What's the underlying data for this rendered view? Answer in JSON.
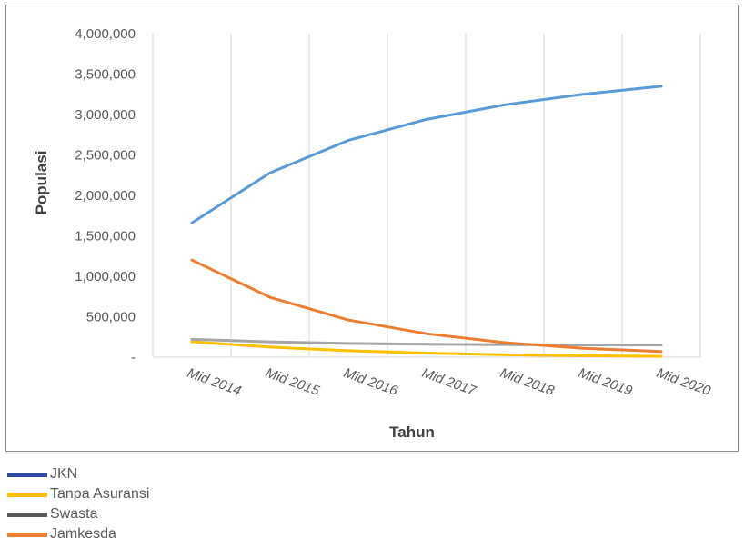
{
  "chart_data": {
    "type": "line",
    "xlabel": "Tahun",
    "ylabel": "Populasi",
    "categories": [
      "Mid 2014",
      "Mid 2015",
      "Mid 2016",
      "Mid 2017",
      "Mid 2018",
      "Mid 2019",
      "Mid 2020"
    ],
    "ylim": [
      0,
      4000000
    ],
    "y_ticks": [
      0,
      500000,
      1000000,
      1500000,
      2000000,
      2500000,
      3000000,
      3500000,
      4000000
    ],
    "y_tick_labels": [
      "-",
      "500,000",
      "1,000,000",
      "1,500,000",
      "2,000,000",
      "2,500,000",
      "3,000,000",
      "3,500,000",
      "4,000,000"
    ],
    "grid": "vertical",
    "legend_position": "bottom-left",
    "series": [
      {
        "name": "JKN",
        "legend_color": "#2e4a9e",
        "line_color": "#5b9bd5",
        "values": [
          1660000,
          2280000,
          2680000,
          2940000,
          3120000,
          3250000,
          3350000
        ]
      },
      {
        "name": "Tanpa Asuransi",
        "legend_color": "#ffc000",
        "line_color": "#ffc000",
        "values": [
          190000,
          125000,
          80000,
          50000,
          30000,
          18000,
          10000
        ]
      },
      {
        "name": "Swasta",
        "legend_color": "#595959",
        "line_color": "#a5a5a5",
        "values": [
          220000,
          190000,
          170000,
          160000,
          155000,
          152000,
          150000
        ]
      },
      {
        "name": "Jamkesda",
        "legend_color": "#ed7d31",
        "line_color": "#ed7d31",
        "values": [
          1200000,
          740000,
          460000,
          290000,
          180000,
          110000,
          70000
        ]
      }
    ]
  }
}
